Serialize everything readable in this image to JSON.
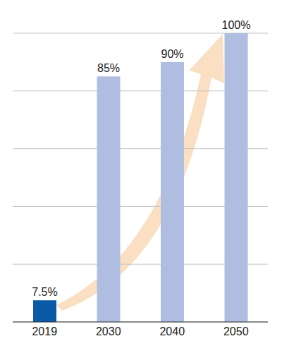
{
  "chart_data": {
    "type": "bar",
    "categories": [
      "2019",
      "2030",
      "2040",
      "2050"
    ],
    "values": [
      7.5,
      85,
      90,
      100
    ],
    "value_labels": [
      "7.5%",
      "85%",
      "90%",
      "100%"
    ],
    "colors": [
      "#0b5aa8",
      "#aebde0",
      "#aebde0",
      "#aebde0"
    ],
    "ylim": [
      0,
      100
    ],
    "yticks": [
      0,
      20,
      40,
      60,
      80,
      100
    ],
    "grid": true,
    "data_labels": true,
    "tick_labels": "x"
  }
}
